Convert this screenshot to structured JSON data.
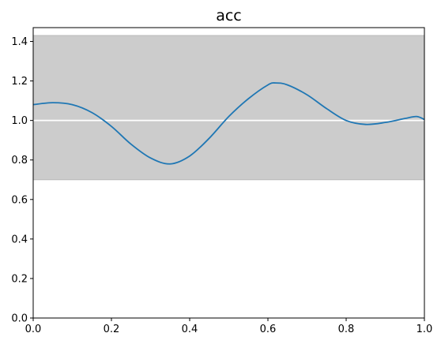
{
  "chart_data": {
    "type": "line",
    "title": "acc",
    "xlabel": "",
    "ylabel": "",
    "xlim": [
      0,
      1
    ],
    "ylim": [
      0,
      1.47
    ],
    "xticks": [
      0,
      0.2,
      0.4,
      0.6,
      0.8,
      1.0
    ],
    "xtick_labels": [
      "0.0",
      "0.2",
      "0.4",
      "0.6",
      "0.8",
      "1.0"
    ],
    "yticks": [
      0,
      0.2,
      0.4,
      0.6,
      0.8,
      1.0,
      1.2,
      1.4
    ],
    "ytick_labels": [
      "0.0",
      "0.2",
      "0.4",
      "0.6",
      "0.8",
      "1.0",
      "1.2",
      "1.4"
    ],
    "grid": false,
    "band": {
      "y_low": 0.7,
      "y_high": 1.43,
      "color": "#cccccc"
    },
    "reference_line": {
      "y": 1.0,
      "color": "#ffffff"
    },
    "series": [
      {
        "color": "#1f77b4",
        "x": [
          0.0,
          0.05,
          0.1,
          0.15,
          0.2,
          0.25,
          0.3,
          0.35,
          0.4,
          0.45,
          0.5,
          0.55,
          0.6,
          0.62,
          0.65,
          0.7,
          0.75,
          0.8,
          0.85,
          0.9,
          0.95,
          0.98,
          1.0
        ],
        "y": [
          1.08,
          1.09,
          1.08,
          1.04,
          0.97,
          0.88,
          0.81,
          0.78,
          0.82,
          0.91,
          1.02,
          1.11,
          1.18,
          1.19,
          1.18,
          1.13,
          1.06,
          1.0,
          0.98,
          0.99,
          1.01,
          1.02,
          1.005
        ]
      }
    ]
  }
}
